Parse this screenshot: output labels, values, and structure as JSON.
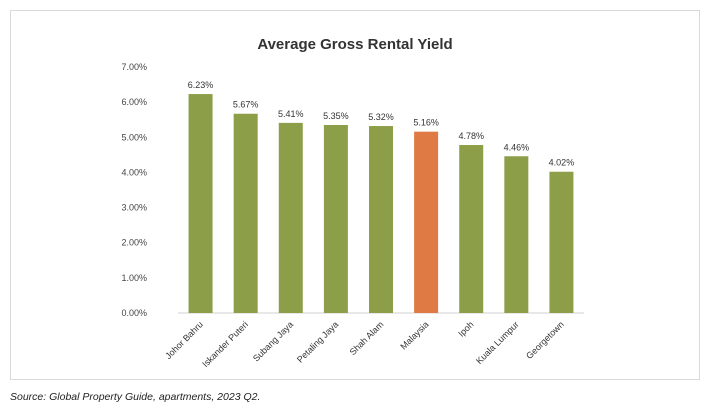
{
  "chart_data": {
    "type": "bar",
    "title": "Average Gross Rental Yield",
    "xlabel": "",
    "ylabel": "",
    "categories": [
      "Johor Bahru",
      "Iskander Puteri",
      "Subang Jaya",
      "Petaling Jaya",
      "Shah Alam",
      "Malaysia",
      "Ipoh",
      "Kuala Lumpur",
      "Georgetown"
    ],
    "values": [
      6.23,
      5.67,
      5.41,
      5.35,
      5.32,
      5.16,
      4.78,
      4.46,
      4.02
    ],
    "value_labels": [
      "6.23%",
      "5.67%",
      "5.41%",
      "5.35%",
      "5.32%",
      "5.16%",
      "4.78%",
      "4.46%",
      "4.02%"
    ],
    "ylim": [
      0,
      7
    ],
    "yticks": [
      "0.00%",
      "1.00%",
      "2.00%",
      "3.00%",
      "4.00%",
      "5.00%",
      "6.00%",
      "7.00%"
    ],
    "grid": false,
    "legend": "none",
    "colors": {
      "default_bar": "#8c9e47",
      "highlight_bar": "#e07a45",
      "highlight_category": "Malaysia"
    }
  },
  "source_note": "Source: Global Property Guide, apartments, 2023 Q2."
}
